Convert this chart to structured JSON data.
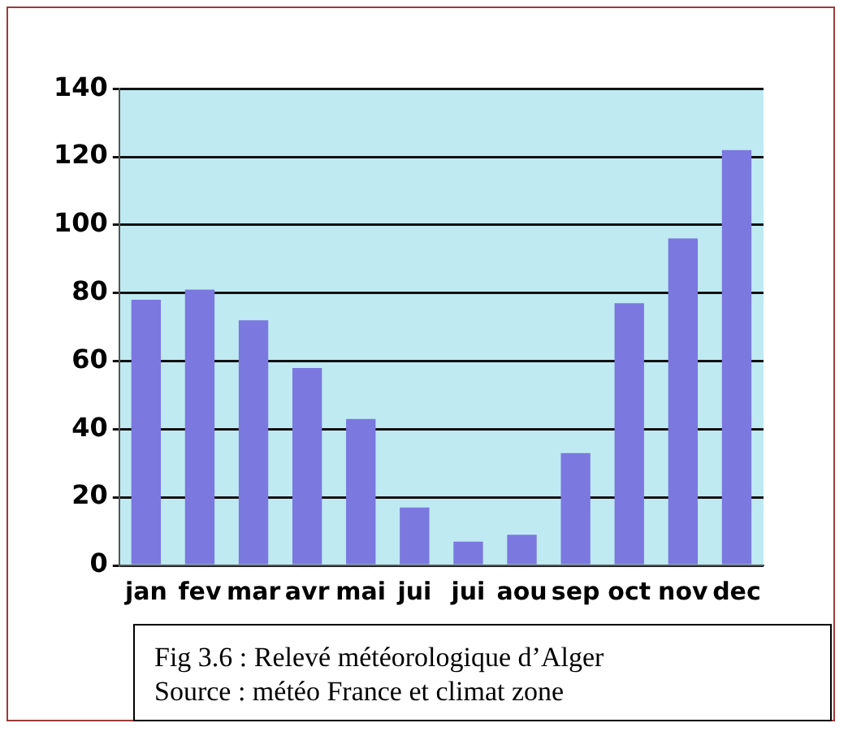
{
  "chart_data": {
    "type": "bar",
    "categories": [
      "jan",
      "fev",
      "mar",
      "avr",
      "mai",
      "jui",
      "jui",
      "aou",
      "sep",
      "oct",
      "nov",
      "dec"
    ],
    "values": [
      78,
      81,
      72,
      58,
      43,
      17,
      7,
      9,
      33,
      77,
      96,
      122
    ],
    "color": "#7b78e0",
    "ylim": [
      0,
      140
    ],
    "yticks": [
      0,
      20,
      40,
      60,
      80,
      100,
      120,
      140
    ],
    "grid": "y",
    "legend": false,
    "annotations": [
      "Fig 3.6 : Relevé météorologique d’Alger",
      "Source : météo France et climat zone"
    ]
  }
}
